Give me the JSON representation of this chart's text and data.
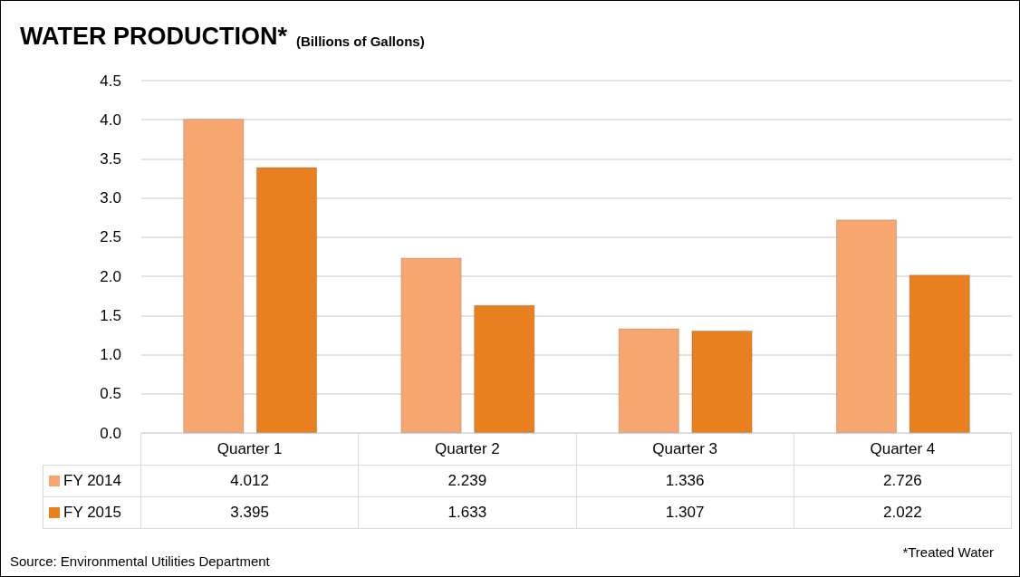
{
  "chart_data": {
    "type": "bar",
    "title": "WATER PRODUCTION*",
    "subtitle": "(Billions of Gallons)",
    "categories": [
      "Quarter 1",
      "Quarter 2",
      "Quarter 3",
      "Quarter 4"
    ],
    "series": [
      {
        "name": "FY 2014",
        "color": "#f7a670",
        "values": [
          4.012,
          2.239,
          1.336,
          2.726
        ]
      },
      {
        "name": "FY 2015",
        "color": "#e8801f",
        "values": [
          3.395,
          1.633,
          1.307,
          2.022
        ]
      }
    ],
    "ylim": [
      0,
      4.5
    ],
    "yticks": [
      {
        "value": 0,
        "label": "0.0"
      },
      0.5,
      {
        "value": 1,
        "label": "1.0"
      },
      1.5,
      {
        "value": 2,
        "label": "2.0"
      },
      2.5,
      {
        "value": 3,
        "label": "3.0"
      },
      3.5,
      {
        "value": 4,
        "label": "4.0"
      },
      4.5
    ],
    "grid": "y",
    "legend": "bottom",
    "data_labels": true,
    "annotations": [
      "Source: Environmental Utilities Department",
      "*Treated Water"
    ]
  }
}
